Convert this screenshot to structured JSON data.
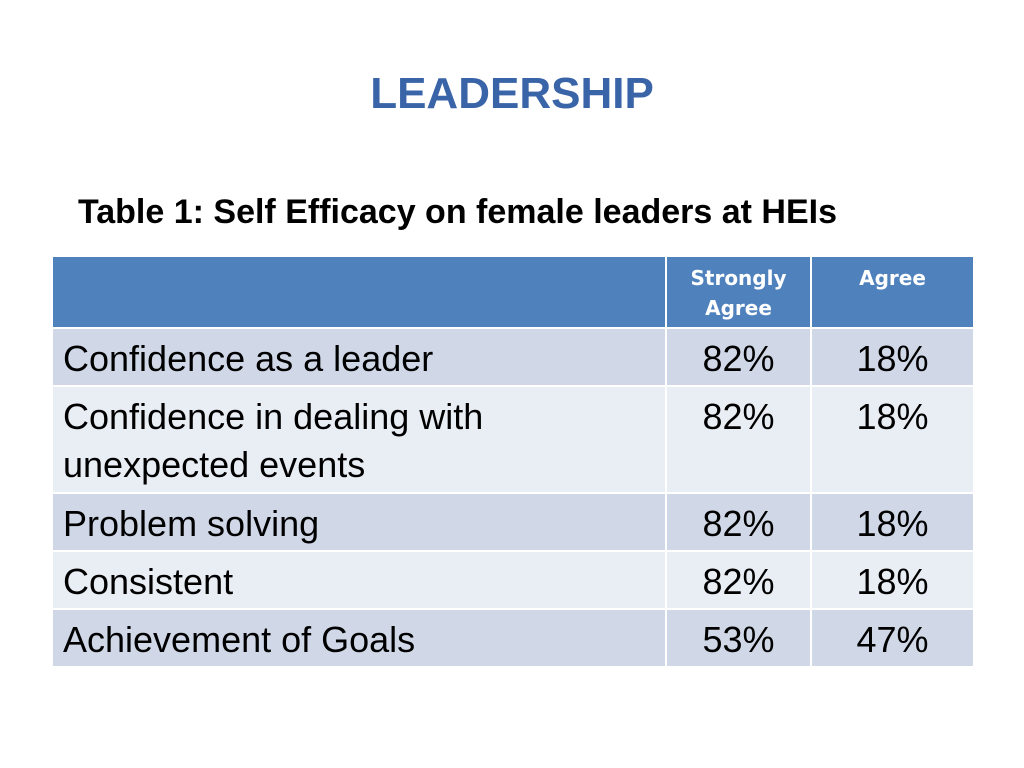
{
  "slide": {
    "title": "LEADERSHIP",
    "caption": "Table 1: Self Efficacy on female leaders at HEIs"
  },
  "table": {
    "headers": [
      "",
      "Strongly Agree",
      "Agree"
    ],
    "rows": [
      {
        "item": "Confidence as a leader",
        "strongly_agree": "82%",
        "agree": "18%"
      },
      {
        "item": "Confidence in dealing with unexpected events",
        "strongly_agree": "82%",
        "agree": "18%"
      },
      {
        "item": "Problem solving",
        "strongly_agree": "82%",
        "agree": "18%"
      },
      {
        "item": "Consistent",
        "strongly_agree": "82%",
        "agree": "18%"
      },
      {
        "item": "Achievement of Goals",
        "strongly_agree": "53%",
        "agree": "47%"
      }
    ]
  },
  "colors": {
    "title": "#3a64a8",
    "header_fill": "#4f81bd",
    "row_odd": "#d0d8e8",
    "row_even": "#e9edf4"
  }
}
